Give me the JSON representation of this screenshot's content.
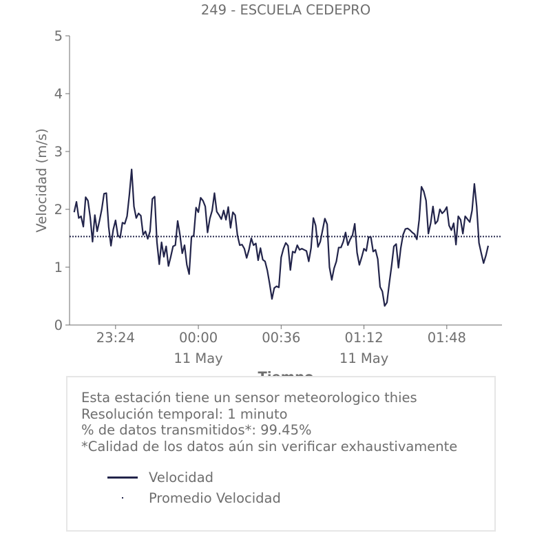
{
  "chart_data": {
    "type": "line",
    "title": "249 - ESCUELA CEDEPRO",
    "xlabel": "Tiempo",
    "ylabel": "Velocidad (m/s)",
    "ylim": [
      0,
      5
    ],
    "yticks": [
      "0",
      "1",
      "2",
      "3",
      "4",
      "5"
    ],
    "xlim_minutes": [
      -56,
      132
    ],
    "xticks": [
      {
        "minute": -36,
        "label": "23:24",
        "sublabel": ""
      },
      {
        "minute": 0,
        "label": "00:00",
        "sublabel": "11 May"
      },
      {
        "minute": 36,
        "label": "00:36",
        "sublabel": ""
      },
      {
        "minute": 72,
        "label": "01:12",
        "sublabel": "11 May"
      },
      {
        "minute": 108,
        "label": "01:48",
        "sublabel": ""
      }
    ],
    "grid": false,
    "series": [
      {
        "name": "Velocidad",
        "color": "#22244a",
        "style": "solid",
        "x_start_minute": -54,
        "x_step_minutes": 1,
        "values": [
          1.95,
          2.13,
          1.85,
          1.88,
          1.7,
          2.21,
          2.15,
          1.86,
          1.44,
          1.9,
          1.62,
          1.8,
          2.0,
          2.27,
          2.28,
          1.7,
          1.37,
          1.65,
          1.81,
          1.55,
          1.51,
          1.77,
          1.75,
          1.88,
          2.25,
          2.69,
          2.05,
          1.85,
          1.93,
          1.89,
          1.56,
          1.62,
          1.49,
          1.62,
          2.18,
          2.22,
          1.43,
          1.05,
          1.43,
          1.18,
          1.36,
          1.02,
          1.18,
          1.36,
          1.38,
          1.8,
          1.56,
          1.24,
          1.38,
          1.04,
          0.88,
          1.52,
          1.55,
          2.03,
          1.95,
          2.2,
          2.15,
          2.05,
          1.6,
          1.84,
          1.98,
          2.28,
          1.96,
          1.9,
          1.83,
          1.98,
          1.82,
          2.04,
          1.68,
          1.95,
          1.9,
          1.55,
          1.38,
          1.39,
          1.32,
          1.16,
          1.3,
          1.5,
          1.38,
          1.41,
          1.12,
          1.33,
          1.13,
          1.1,
          0.94,
          0.71,
          0.45,
          0.64,
          0.67,
          0.65,
          1.17,
          1.32,
          1.42,
          1.37,
          0.95,
          1.27,
          1.25,
          1.38,
          1.3,
          1.32,
          1.3,
          1.28,
          1.1,
          1.33,
          1.85,
          1.72,
          1.35,
          1.44,
          1.64,
          1.84,
          1.74,
          1.0,
          0.78,
          0.98,
          1.1,
          1.34,
          1.34,
          1.44,
          1.6,
          1.38,
          1.48,
          1.55,
          1.75,
          1.25,
          1.04,
          1.17,
          1.32,
          1.28,
          1.52,
          1.52,
          1.27,
          1.3,
          1.14,
          0.66,
          0.58,
          0.33,
          0.39,
          0.72,
          1.02,
          1.36,
          1.4,
          0.99,
          1.33,
          1.56,
          1.66,
          1.67,
          1.64,
          1.6,
          1.57,
          1.48,
          1.82,
          2.39,
          2.31,
          2.15,
          1.58,
          1.76,
          2.05,
          1.75,
          1.8,
          2.0,
          1.93,
          1.97,
          2.04,
          1.72,
          1.64,
          1.76,
          1.39,
          1.88,
          1.82,
          1.58,
          1.88,
          1.83,
          1.78,
          1.98,
          2.44,
          2.05,
          1.42,
          1.24,
          1.07,
          1.2,
          1.37
        ]
      },
      {
        "name": "Promedio Velocidad",
        "color": "#22244a",
        "style": "dotted",
        "constant": 1.53
      }
    ]
  },
  "info": {
    "lines": [
      "Esta estación tiene un sensor meteorologico thies",
      "Resolución temporal: 1 minuto",
      "% de datos transmitidos*: 99.45%",
      "*Calidad de los datos aún sin verificar exhaustivamente"
    ]
  }
}
